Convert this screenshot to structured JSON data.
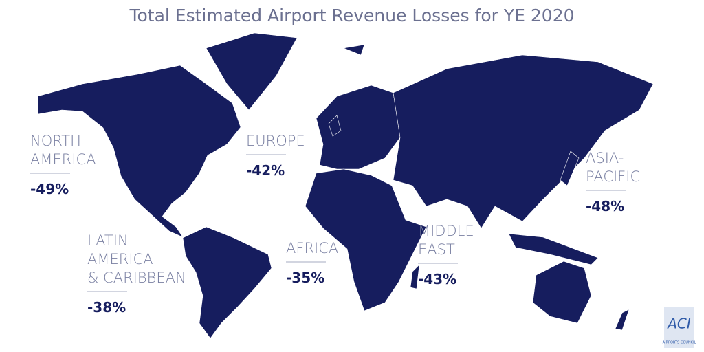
{
  "header": {
    "title": "Total Estimated Airport Revenue Losses for YE 2020"
  },
  "regions": [
    {
      "name": [
        "NORTH",
        "AMERICA"
      ],
      "change": "-49%"
    },
    {
      "name": [
        "EUROPE"
      ],
      "change": "-42%"
    },
    {
      "name": [
        "ASIA-",
        "PACIFIC"
      ],
      "change": "-48%"
    },
    {
      "name": [
        "LATIN",
        "AMERICA",
        "& CARIBBEAN"
      ],
      "change": "-38%"
    },
    {
      "name": [
        "AFRICA"
      ],
      "change": "-35%"
    },
    {
      "name": [
        "MIDDLE",
        "EAST"
      ],
      "change": "-43%"
    }
  ],
  "logo": {
    "mark": "ACI",
    "caption": "AIRPORTS COUNCIL"
  }
}
